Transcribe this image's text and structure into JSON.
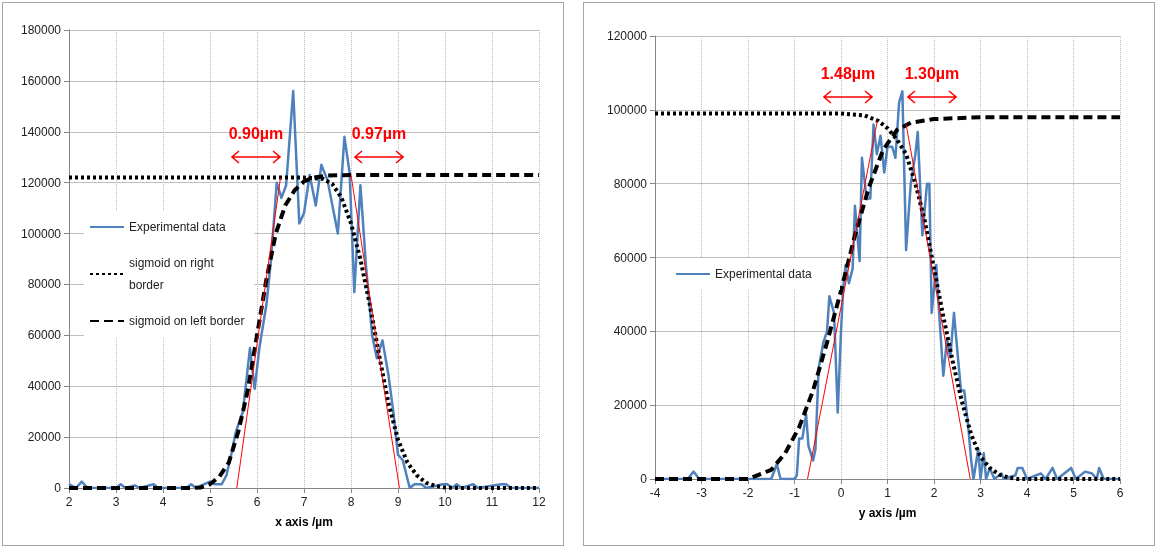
{
  "chart_data": [
    {
      "type": "line",
      "xlabel": "x axis /µm",
      "xlim": [
        2,
        12
      ],
      "xticks": [
        2,
        3,
        4,
        5,
        6,
        7,
        8,
        9,
        10,
        11,
        12
      ],
      "ylim": [
        0,
        180000
      ],
      "yticks": [
        0,
        20000,
        40000,
        60000,
        80000,
        100000,
        120000,
        140000,
        160000,
        180000
      ],
      "grid": true,
      "legend": "left",
      "marker": "none",
      "annotations": [
        "0.90µm",
        "0.97µm"
      ],
      "series": [
        {
          "name": "Experimental data",
          "color": "#4f81bd",
          "line_style": "solid",
          "x": [
            2.0,
            2.15,
            2.27,
            2.4,
            3.0,
            3.1,
            3.2,
            3.4,
            3.5,
            3.8,
            3.9,
            4.5,
            4.6,
            4.7,
            5.0,
            5.1,
            5.25,
            5.35,
            5.45,
            5.55,
            5.7,
            5.85,
            5.95,
            6.05,
            6.2,
            6.3,
            6.42,
            6.52,
            6.62,
            6.77,
            6.9,
            7.0,
            7.12,
            7.25,
            7.37,
            7.5,
            7.72,
            7.86,
            7.97,
            8.07,
            8.2,
            8.32,
            8.45,
            8.55,
            8.67,
            8.8,
            8.9,
            9.0,
            9.1,
            9.25,
            9.35,
            9.5,
            9.6,
            9.95,
            10.05,
            10.15,
            10.25,
            10.35,
            10.6,
            10.7,
            11.2,
            11.3,
            11.4,
            12.0
          ],
          "values": [
            1500,
            0,
            2500,
            0,
            0,
            1500,
            0,
            1000,
            0,
            1500,
            0,
            0,
            1500,
            0,
            2500,
            1500,
            1500,
            5000,
            13000,
            22000,
            30000,
            55000,
            39000,
            55000,
            72000,
            90000,
            120000,
            114000,
            119000,
            156000,
            104000,
            108000,
            123000,
            111000,
            127000,
            121000,
            100000,
            138000,
            124000,
            77000,
            119000,
            87000,
            60000,
            51000,
            58000,
            44000,
            30000,
            13000,
            11000,
            0,
            1500,
            1500,
            0,
            1500,
            1500,
            0,
            1500,
            0,
            1500,
            0,
            1500,
            1500,
            0,
            0
          ]
        },
        {
          "name": "sigmoid on right border",
          "color": "#000000",
          "line_style": "dotted",
          "x": [
            2,
            7.0,
            7.4,
            7.6,
            7.8,
            8.0,
            8.2,
            8.4,
            8.6,
            8.8,
            9.0,
            9.2,
            9.4,
            9.6,
            9.8,
            10.0,
            10.3,
            12
          ],
          "values": [
            122000,
            122000,
            121500,
            119500,
            114000,
            104000,
            90000,
            72000,
            52000,
            33000,
            19000,
            10000,
            5000,
            2000,
            800,
            200,
            0,
            0
          ]
        },
        {
          "name": "sigmoid on left border",
          "color": "#000000",
          "line_style": "dashed",
          "x": [
            2,
            4.6,
            4.8,
            5.0,
            5.2,
            5.4,
            5.6,
            5.8,
            6.0,
            6.2,
            6.4,
            6.6,
            6.8,
            7.0,
            7.2,
            7.5,
            8.0,
            12
          ],
          "values": [
            0,
            0,
            200,
            1500,
            4500,
            10000,
            22000,
            38000,
            60000,
            82000,
            100000,
            111000,
            117000,
            120500,
            122000,
            122800,
            123000,
            123000
          ]
        },
        {
          "color": "#ff0000",
          "line_style": "solid",
          "x": [
            5.57,
            6.5
          ],
          "values": [
            0,
            122000
          ]
        },
        {
          "color": "#ff0000",
          "line_style": "solid",
          "x": [
            8.0,
            9.03
          ],
          "values": [
            123000,
            0
          ]
        }
      ]
    },
    {
      "type": "line",
      "xlabel": "y axis /µm",
      "xlim": [
        -4,
        6
      ],
      "xticks": [
        -4,
        -3,
        -2,
        -1,
        0,
        1,
        2,
        3,
        4,
        5,
        6
      ],
      "ylim": [
        0,
        120000
      ],
      "yticks": [
        0,
        20000,
        40000,
        60000,
        80000,
        100000,
        120000
      ],
      "grid": true,
      "legend": "left",
      "marker": "none",
      "annotations": [
        "1.48µm",
        "1.30µm"
      ],
      "series": [
        {
          "name": "Experimental data",
          "color": "#4f81bd",
          "line_style": "solid",
          "x": [
            -4,
            -3.3,
            -3.17,
            -3.05,
            -1.5,
            -1.38,
            -1.3,
            -1.0,
            -0.95,
            -0.9,
            -0.83,
            -0.75,
            -0.7,
            -0.6,
            -0.55,
            -0.48,
            -0.38,
            -0.3,
            -0.25,
            -0.15,
            -0.07,
            0.0,
            0.05,
            0.1,
            0.17,
            0.25,
            0.3,
            0.4,
            0.45,
            0.55,
            0.63,
            0.7,
            0.77,
            0.85,
            0.93,
            1.0,
            1.1,
            1.17,
            1.25,
            1.32,
            1.4,
            1.5,
            1.6,
            1.65,
            1.75,
            1.85,
            1.9,
            1.95,
            2.05,
            2.1,
            2.2,
            2.28,
            2.35,
            2.43,
            2.5,
            2.58,
            2.65,
            2.73,
            2.8,
            2.85,
            2.95,
            3.0,
            3.07,
            3.12,
            3.2,
            3.3,
            3.45,
            3.5,
            3.75,
            3.8,
            3.9,
            4.0,
            4.3,
            4.4,
            4.55,
            4.65,
            4.95,
            5.05,
            5.25,
            5.4,
            5.5,
            5.55,
            5.65,
            6.0
          ],
          "values": [
            0,
            0,
            2000,
            0,
            0,
            4000,
            0,
            0,
            1000,
            11000,
            11000,
            17500,
            9000,
            5000,
            8000,
            30000,
            37000,
            40000,
            49500,
            45000,
            18000,
            40000,
            52000,
            58000,
            53000,
            57000,
            74000,
            59000,
            87000,
            76000,
            76000,
            96000,
            88000,
            93000,
            83000,
            90000,
            90000,
            87000,
            102000,
            105000,
            62000,
            80000,
            88000,
            94000,
            66000,
            80000,
            80000,
            45000,
            58000,
            47000,
            28000,
            38000,
            33000,
            45000,
            35000,
            24000,
            24000,
            15000,
            5000,
            0,
            8000,
            0,
            7000,
            0,
            3000,
            0,
            1500,
            0,
            1000,
            3000,
            3000,
            0,
            1500,
            0,
            3000,
            0,
            3000,
            0,
            2000,
            1500,
            0,
            3000,
            0,
            0
          ]
        },
        {
          "color": "#000000",
          "line_style": "dotted",
          "x": [
            -4,
            0.0,
            0.5,
            0.8,
            1.0,
            1.2,
            1.4,
            1.6,
            1.8,
            2.0,
            2.2,
            2.4,
            2.6,
            2.8,
            3.0,
            3.2,
            3.4,
            3.6,
            3.8,
            6
          ],
          "values": [
            99000,
            99000,
            98500,
            97000,
            95000,
            92000,
            88000,
            80000,
            70000,
            57000,
            44000,
            32000,
            21000,
            12000,
            6000,
            3000,
            1200,
            400,
            0,
            0
          ]
        },
        {
          "color": "#000000",
          "line_style": "dashed",
          "x": [
            -4,
            -2.0,
            -1.8,
            -1.5,
            -1.2,
            -0.9,
            -0.6,
            -0.3,
            0.0,
            0.3,
            0.6,
            0.9,
            1.2,
            1.5,
            2.0,
            3.0,
            6.0
          ],
          "values": [
            0,
            0,
            1000,
            2500,
            7000,
            14000,
            24000,
            37000,
            51000,
            66000,
            79000,
            89000,
            94500,
            96500,
            97500,
            98000,
            98000
          ]
        },
        {
          "color": "#ff0000",
          "line_style": "solid",
          "x": [
            -0.72,
            0.78
          ],
          "values": [
            0,
            97000
          ]
        },
        {
          "color": "#ff0000",
          "line_style": "solid",
          "x": [
            1.4,
            2.78
          ],
          "values": [
            96000,
            0
          ]
        }
      ]
    }
  ]
}
